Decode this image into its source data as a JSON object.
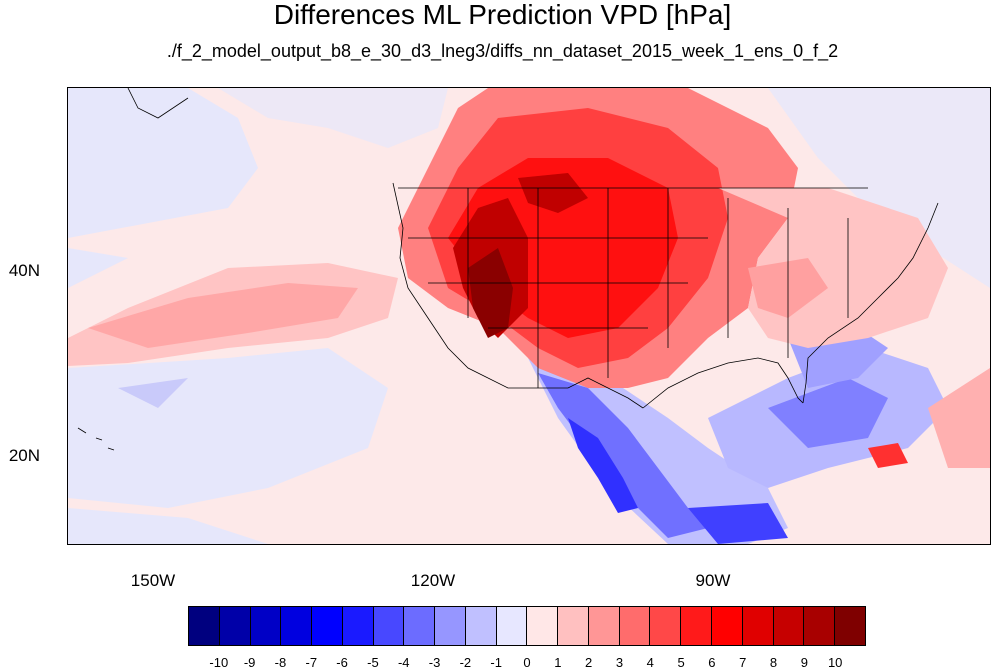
{
  "title": "Differences ML Prediction VPD [hPa]",
  "subtitle": "./f_2_model_output_b8_e_30_d3_lneg3/diffs_nn_dataset_2015_week_1_ens_0_f_2",
  "map": {
    "lon_labels": [
      "150W",
      "120W",
      "90W"
    ],
    "lat_labels": [
      "40N",
      "20N"
    ]
  },
  "colorbar": {
    "colors": [
      "#00007f",
      "#0000a8",
      "#0000c6",
      "#0000e0",
      "#0000ff",
      "#1a1aff",
      "#4848ff",
      "#6c6cff",
      "#9696ff",
      "#c0c0ff",
      "#e7e7ff",
      "#ffe7e7",
      "#ffc0c0",
      "#ff9696",
      "#ff6c6c",
      "#ff4848",
      "#ff1a1a",
      "#ff0000",
      "#e00000",
      "#c60000",
      "#a80000",
      "#7f0000"
    ],
    "ticks": [
      "-10",
      "-9",
      "-8",
      "-7",
      "-6",
      "-5",
      "-4",
      "-3",
      "-2",
      "-1",
      "0",
      "1",
      "2",
      "3",
      "4",
      "5",
      "6",
      "7",
      "8",
      "9",
      "10"
    ]
  }
}
